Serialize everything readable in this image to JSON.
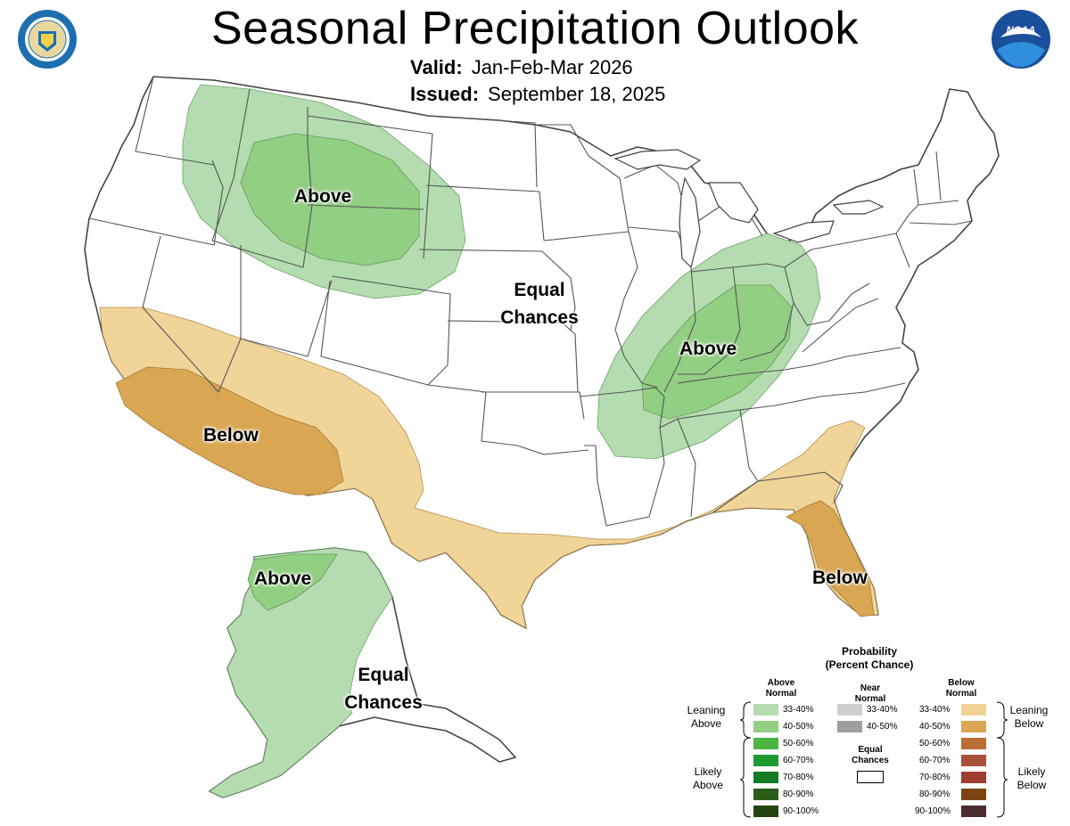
{
  "header": {
    "title": "Seasonal Precipitation Outlook",
    "valid_label": "Valid:",
    "valid_value": "Jan-Feb-Mar 2026",
    "issued_label": "Issued:",
    "issued_value": "September 18, 2025"
  },
  "logos": {
    "left": "department-of-commerce-seal",
    "right": "noaa-logo",
    "noaa_text": "NOAA"
  },
  "map_labels": {
    "northwest": "Above",
    "central_1": "Equal",
    "central_2": "Chances",
    "ohio_valley": "Above",
    "southwest": "Below",
    "florida": "Below",
    "alaska_west": "Above",
    "alaska_east_1": "Equal",
    "alaska_east_2": "Chances"
  },
  "colors": {
    "above_33_40": "#b4dcb0",
    "above_40_50": "#93cf83",
    "below_33_40": "#f1d394",
    "below_40_50": "#d9a653",
    "state_line": "#555555"
  },
  "legend": {
    "title_1": "Probability",
    "title_2": "(Percent Chance)",
    "above_head_1": "Above",
    "above_head_2": "Normal",
    "near_head_1": "Near",
    "near_head_2": "Normal",
    "below_head_1": "Below",
    "below_head_2": "Normal",
    "leaning_above_1": "Leaning",
    "leaning_above_2": "Above",
    "likely_above_1": "Likely",
    "likely_above_2": "Above",
    "leaning_below_1": "Leaning",
    "leaning_below_2": "Below",
    "likely_below_1": "Likely",
    "likely_below_2": "Below",
    "equal_1": "Equal",
    "equal_2": "Chances",
    "above": [
      {
        "label": "33-40%",
        "color": "#b4dcb0"
      },
      {
        "label": "40-50%",
        "color": "#93cf83"
      },
      {
        "label": "50-60%",
        "color": "#4db444"
      },
      {
        "label": "60-70%",
        "color": "#1e9a30"
      },
      {
        "label": "70-80%",
        "color": "#137c24"
      },
      {
        "label": "80-90%",
        "color": "#2b5b18"
      },
      {
        "label": "90-100%",
        "color": "#234411"
      }
    ],
    "near": [
      {
        "label": "33-40%",
        "color": "#cfcfcf"
      },
      {
        "label": "40-50%",
        "color": "#9f9f9f"
      }
    ],
    "below": [
      {
        "label": "33-40%",
        "color": "#f1d394"
      },
      {
        "label": "40-50%",
        "color": "#d9a653"
      },
      {
        "label": "50-60%",
        "color": "#bb6c37"
      },
      {
        "label": "60-70%",
        "color": "#a9503a"
      },
      {
        "label": "70-80%",
        "color": "#9b3e2e"
      },
      {
        "label": "80-90%",
        "color": "#7a4311"
      },
      {
        "label": "90-100%",
        "color": "#4b2e2e"
      }
    ]
  }
}
